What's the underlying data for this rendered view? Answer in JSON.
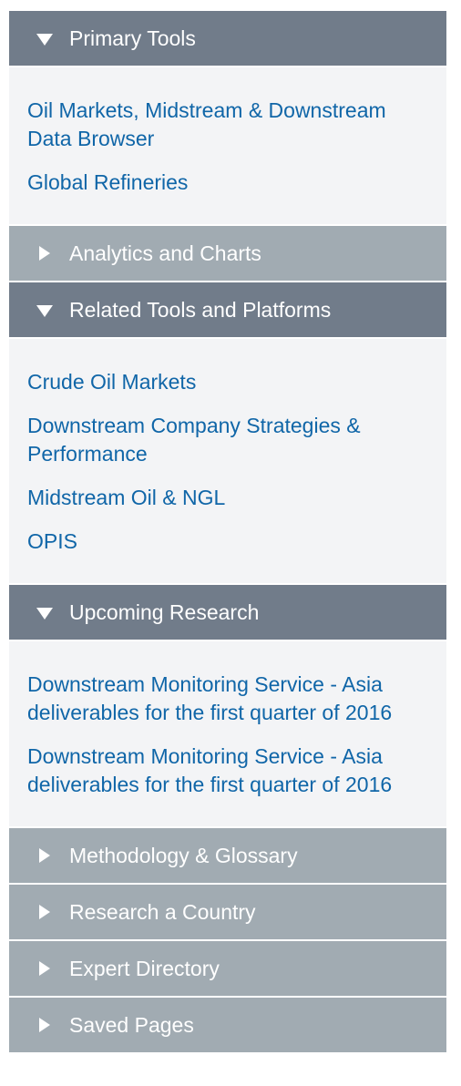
{
  "sections": [
    {
      "title": "Primary Tools",
      "expanded": true,
      "links": [
        "Oil Markets, Midstream & Downstream Data Browser",
        "Global Refineries"
      ]
    },
    {
      "title": "Analytics and Charts",
      "expanded": false,
      "links": []
    },
    {
      "title": "Related Tools and Platforms",
      "expanded": true,
      "links": [
        "Crude Oil Markets",
        "Downstream Company Strategies & Performance",
        "Midstream Oil & NGL",
        "OPIS"
      ]
    },
    {
      "title": "Upcoming Research",
      "expanded": true,
      "links": [
        "Downstream Monitoring Service - Asia deliverables for the first quarter of 2016",
        "Downstream Monitoring Service - Asia deliverables for the first quarter of 2016"
      ]
    },
    {
      "title": "Methodology & Glossary",
      "expanded": false,
      "links": []
    },
    {
      "title": "Research a Country",
      "expanded": false,
      "links": []
    },
    {
      "title": "Expert Directory",
      "expanded": false,
      "links": []
    },
    {
      "title": "Saved Pages",
      "expanded": false,
      "links": []
    }
  ],
  "icons": {
    "expanded": "caret-down-icon",
    "collapsed": "caret-right-icon"
  },
  "colors": {
    "expanded_header": "#717c8a",
    "collapsed_header": "#a1abb2",
    "body_background": "#f3f4f6",
    "link": "#1066a8"
  }
}
